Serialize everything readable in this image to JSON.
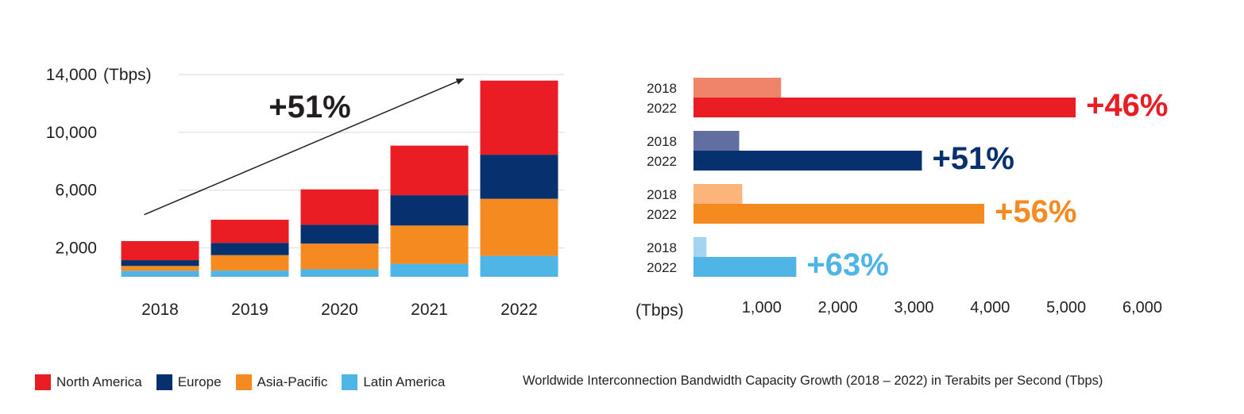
{
  "colors": {
    "north_america": "#ea1d25",
    "europe": "#07306f",
    "asia_pacific": "#f58b20",
    "latin_america": "#4fb4e6",
    "north_america_2018": "#f08469",
    "europe_2018": "#616ea0",
    "asia_pacific_2018": "#fbb57a",
    "latin_america_2018": "#a3d4f1",
    "axis_text": "#231f20",
    "grid": "#d9d9d9"
  },
  "legend": {
    "items": [
      {
        "label": "North America",
        "color_key": "north_america"
      },
      {
        "label": "Europe",
        "color_key": "europe"
      },
      {
        "label": "Asia-Pacific",
        "color_key": "asia_pacific"
      },
      {
        "label": "Latin America",
        "color_key": "latin_america"
      }
    ]
  },
  "caption": "Worldwide Interconnection Bandwidth Capacity Growth (2018 – 2022) in Terabits per Second (Tbps)",
  "chart_data": [
    {
      "type": "bar",
      "stacked": true,
      "title": "",
      "xlabel": "",
      "ylabel": "(Tbps)",
      "ylim": [
        0,
        14000
      ],
      "y_ticks": [
        2000,
        6000,
        10000,
        14000
      ],
      "y_tick_labels": [
        "2,000",
        "6,000",
        "10,000",
        "14,000"
      ],
      "grid": true,
      "categories": [
        "2018",
        "2019",
        "2020",
        "2021",
        "2022"
      ],
      "series": [
        {
          "name": "Latin America",
          "color_key": "latin_america",
          "values": [
            420,
            430,
            520,
            900,
            1450
          ]
        },
        {
          "name": "Asia-Pacific",
          "color_key": "asia_pacific",
          "values": [
            330,
            1070,
            1780,
            2650,
            3950
          ]
        },
        {
          "name": "Europe",
          "color_key": "europe",
          "values": [
            400,
            850,
            1300,
            2100,
            3050
          ]
        },
        {
          "name": "North America",
          "color_key": "north_america",
          "values": [
            1320,
            1600,
            2450,
            3430,
            5130
          ]
        }
      ],
      "annotation": {
        "text": "+51%",
        "arrow_from": [
          "2018",
          4300
        ],
        "arrow_to": [
          "2022",
          13700
        ]
      }
    },
    {
      "type": "bar",
      "orientation": "horizontal",
      "title": "",
      "xlabel": "(Tbps)",
      "xlim": [
        0,
        6000
      ],
      "x_ticks": [
        1000,
        2000,
        3000,
        4000,
        5000,
        6000
      ],
      "x_tick_labels": [
        "1,000",
        "2,000",
        "3,000",
        "4,000",
        "5,000",
        "6,000"
      ],
      "grid": false,
      "groups": [
        {
          "name": "North America",
          "color_key": "north_america",
          "color_2018_key": "north_america_2018",
          "bars": [
            {
              "year": "2018",
              "value": 1150
            },
            {
              "year": "2022",
              "value": 5020
            }
          ],
          "growth": "+46%"
        },
        {
          "name": "Europe",
          "color_key": "europe",
          "color_2018_key": "europe_2018",
          "bars": [
            {
              "year": "2018",
              "value": 600
            },
            {
              "year": "2022",
              "value": 3000
            }
          ],
          "growth": "+51%"
        },
        {
          "name": "Asia-Pacific",
          "color_key": "asia_pacific",
          "color_2018_key": "asia_pacific_2018",
          "bars": [
            {
              "year": "2018",
              "value": 640
            },
            {
              "year": "2022",
              "value": 3820
            }
          ],
          "growth": "+56%"
        },
        {
          "name": "Latin America",
          "color_key": "latin_america",
          "color_2018_key": "latin_america_2018",
          "bars": [
            {
              "year": "2018",
              "value": 170
            },
            {
              "year": "2022",
              "value": 1350
            }
          ],
          "growth": "+63%"
        }
      ]
    }
  ]
}
